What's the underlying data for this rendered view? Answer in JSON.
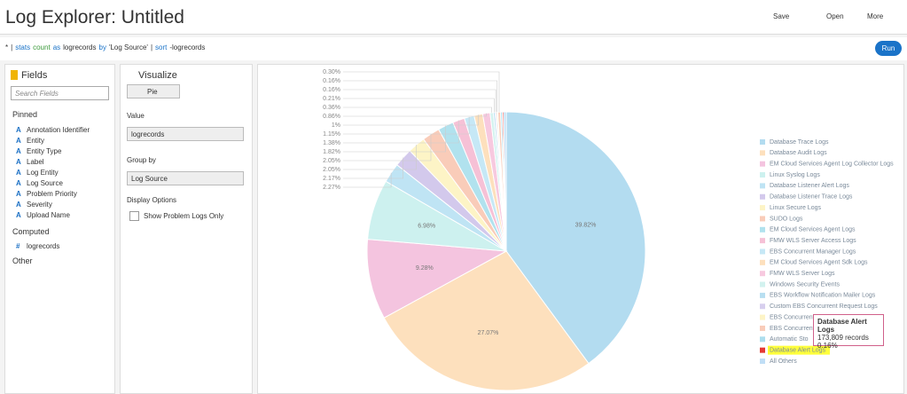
{
  "header": {
    "title": "Log Explorer: Untitled",
    "actions": [
      "Save",
      "Open",
      "More"
    ]
  },
  "query": {
    "tokens": [
      "*",
      "|",
      "stats",
      "count",
      "as",
      "logrecords",
      "by",
      "'Log Source'",
      "|",
      "sort",
      "-logrecords"
    ],
    "run_button": "Run"
  },
  "fields_panel": {
    "title": "Fields",
    "search_placeholder": "Search Fields",
    "pinned_title": "Pinned",
    "pinned": [
      {
        "type": "A",
        "name": "Annotation Identifier"
      },
      {
        "type": "A",
        "name": "Entity"
      },
      {
        "type": "A",
        "name": "Entity Type"
      },
      {
        "type": "A",
        "name": "Label"
      },
      {
        "type": "A",
        "name": "Log Entity"
      },
      {
        "type": "A",
        "name": "Log Source"
      },
      {
        "type": "A",
        "name": "Problem Priority"
      },
      {
        "type": "A",
        "name": "Severity"
      },
      {
        "type": "A",
        "name": "Upload Name"
      }
    ],
    "computed_title": "Computed",
    "computed": [
      {
        "type": "#",
        "name": "logrecords"
      }
    ],
    "other_title": "Other"
  },
  "visualize_panel": {
    "title": "Visualize",
    "chart_type": "Pie",
    "value_label": "Value",
    "value": "logrecords",
    "group_by_label": "Group by",
    "group_by": "Log Source",
    "display_options_label": "Display Options",
    "checkbox": "Show Problem Logs Only"
  },
  "chart_data": {
    "type": "pie",
    "legend": "right",
    "categories": [
      "Database Trace Logs",
      "Database Audit Logs",
      "EM Cloud Services Agent Log Collector Logs",
      "Linux Syslog Logs",
      "Database Listener Alert Logs",
      "Database Listener Trace Logs",
      "Linux Secure Logs",
      "SUDO Logs",
      "EM Cloud Services Agent Logs",
      "FMW WLS Server Access Logs",
      "EBS Concurrent Manager Logs",
      "EM Cloud Services Agent Sdk Logs",
      "FMW WLS Server Logs",
      "Windows Security Events",
      "EBS Workflow Notification Mailer Logs",
      "Custom EBS Concurrent Request Logs",
      "EBS Concurrent",
      "EBS Concurrent",
      "Automatic Sto",
      "Database Alert Logs",
      "All Others"
    ],
    "values": [
      39.82,
      27.07,
      9.28,
      6.98,
      2.27,
      2.17,
      2.05,
      2.05,
      1.82,
      1.38,
      1.15,
      1,
      0.86,
      0.36,
      0.21,
      0.16,
      0.16,
      0.3,
      0.2,
      0.16,
      0.3
    ],
    "value_labels": [
      "39.82%",
      "27.07%",
      "9.28%",
      "6.98%",
      "2.27%",
      "2.17%",
      "2.05%",
      "2.05%",
      "1.82%",
      "1.38%",
      "1.15%",
      "1%",
      "0.86%",
      "0.36%",
      "0.21%",
      "0.16%",
      "0.16%",
      "0.30%",
      null,
      null,
      null
    ],
    "colors": [
      "#b3dcf0",
      "#fde0bd",
      "#f4c4df",
      "#cdf1ef",
      "#bfe4f4",
      "#d3c9ec",
      "#fdf4c6",
      "#f9ccb9",
      "#b1e2ee",
      "#f6c1d6",
      "#c6e8f6",
      "#fde0bd",
      "#f7c9df",
      "#d2f2ef",
      "#b8dff1",
      "#d7cfee",
      "#fdf4c6",
      "#f9ccb9",
      "#addeee",
      "#e53935",
      "#c0def6"
    ]
  },
  "tooltip": {
    "title": "Database Alert Logs",
    "records": "173,809 records",
    "percent": "0.16%"
  }
}
